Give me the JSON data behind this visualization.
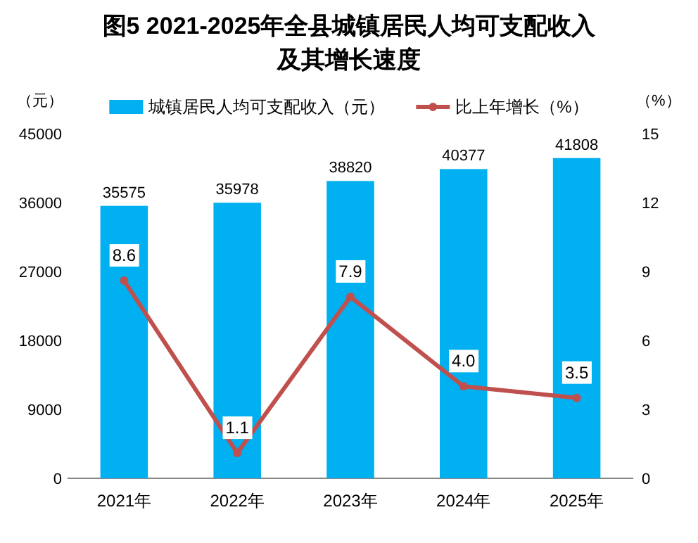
{
  "chart_data": {
    "type": "bar",
    "title": "图5  2021-2025年全县城镇居民人均可支配收入及其增长速度",
    "categories": [
      "2021年",
      "2022年",
      "2023年",
      "2024年",
      "2025年"
    ],
    "series": [
      {
        "name": "城镇居民人均可支配收入（元）",
        "color": "#00b0f0",
        "values": [
          35575,
          35978,
          38820,
          40377,
          41808
        ],
        "value_labels": [
          "35575",
          "35978",
          "38820",
          "40377",
          "41808"
        ]
      },
      {
        "name": "比上年增长（%）",
        "type": "line",
        "axis": "y2",
        "color": "#c0504d",
        "marker": "circle",
        "values": [
          8.6,
          1.1,
          7.9,
          4.0,
          3.5
        ],
        "value_labels": [
          "8.6",
          "1.1",
          "7.9",
          "4.0",
          "3.5"
        ]
      }
    ],
    "ylabel": "（元）",
    "y2label": "（%）",
    "ylim": [
      0,
      45000
    ],
    "yticks": [
      0,
      9000,
      18000,
      27000,
      36000,
      45000
    ],
    "y2lim": [
      0,
      15
    ],
    "y2ticks": [
      0,
      3,
      6,
      9,
      12,
      15
    ],
    "legend": "top",
    "grid": false
  }
}
